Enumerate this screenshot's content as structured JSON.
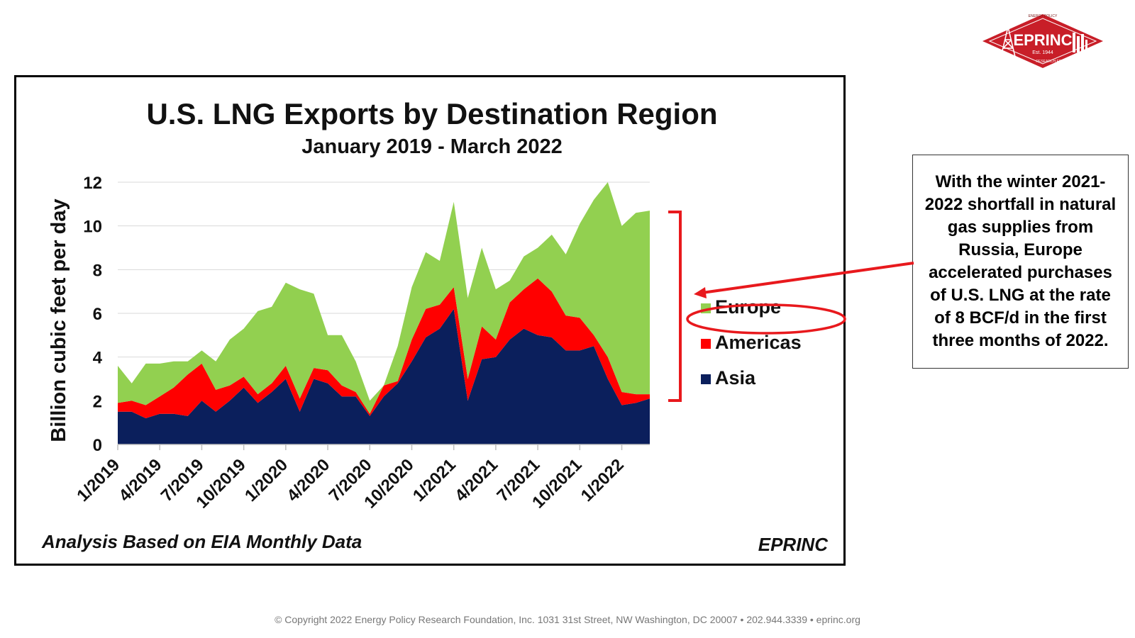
{
  "logo": {
    "name": "EPRINC",
    "established": "Est. 1944",
    "ring_text_top": "ENERGY POLICY",
    "ring_text_bottom": "RESEARCH FOUNDATION INC."
  },
  "chart_data": {
    "type": "area",
    "stacked": true,
    "title": "U.S. LNG Exports by Destination Region",
    "subtitle": "January 2019 - March 2022",
    "ylabel": "Billion  cubic feet per day",
    "xlabel": "",
    "ylim": [
      0,
      12
    ],
    "yticks": [
      0,
      2,
      4,
      6,
      8,
      10,
      12
    ],
    "grid": true,
    "legend_position": "right",
    "x": [
      "1/2019",
      "2/2019",
      "3/2019",
      "4/2019",
      "5/2019",
      "6/2019",
      "7/2019",
      "8/2019",
      "9/2019",
      "10/2019",
      "11/2019",
      "12/2019",
      "1/2020",
      "2/2020",
      "3/2020",
      "4/2020",
      "5/2020",
      "6/2020",
      "7/2020",
      "8/2020",
      "9/2020",
      "10/2020",
      "11/2020",
      "12/2020",
      "1/2021",
      "2/2021",
      "3/2021",
      "4/2021",
      "5/2021",
      "6/2021",
      "7/2021",
      "8/2021",
      "9/2021",
      "10/2021",
      "11/2021",
      "12/2021",
      "1/2022",
      "2/2022",
      "3/2022"
    ],
    "xtick_labels": [
      "1/2019",
      "4/2019",
      "7/2019",
      "10/2019",
      "1/2020",
      "4/2020",
      "7/2020",
      "10/2020",
      "1/2021",
      "4/2021",
      "7/2021",
      "10/2021",
      "1/2022"
    ],
    "series": [
      {
        "name": "Asia",
        "color": "#0b1f5c",
        "values": [
          1.5,
          1.5,
          1.2,
          1.4,
          1.4,
          1.3,
          2.0,
          1.5,
          2.0,
          2.6,
          1.9,
          2.4,
          3.0,
          1.5,
          3.0,
          2.8,
          2.2,
          2.2,
          1.3,
          2.2,
          2.8,
          3.8,
          4.9,
          5.3,
          6.2,
          2.0,
          3.9,
          4.0,
          4.8,
          5.3,
          5.0,
          4.9,
          4.3,
          4.3,
          4.5,
          3.0,
          1.8,
          1.9,
          2.1
        ]
      },
      {
        "name": "Americas",
        "color": "#ff0000",
        "values": [
          0.4,
          0.5,
          0.6,
          0.8,
          1.2,
          1.9,
          1.7,
          1.0,
          0.7,
          0.5,
          0.4,
          0.4,
          0.6,
          0.6,
          0.5,
          0.6,
          0.5,
          0.2,
          0.1,
          0.5,
          0.1,
          1.0,
          1.3,
          1.1,
          1.0,
          1.0,
          1.5,
          0.8,
          1.7,
          1.8,
          2.6,
          2.1,
          1.6,
          1.5,
          0.5,
          1.0,
          0.6,
          0.4,
          0.2
        ]
      },
      {
        "name": "Europe",
        "color": "#92d050",
        "values": [
          1.7,
          0.8,
          1.9,
          1.5,
          1.2,
          0.6,
          0.6,
          1.3,
          2.1,
          2.2,
          3.8,
          3.5,
          3.8,
          5.0,
          3.4,
          1.6,
          2.3,
          1.4,
          0.6,
          0.0,
          1.6,
          2.4,
          2.6,
          2.0,
          3.9,
          3.7,
          3.6,
          2.3,
          1.0,
          1.5,
          1.4,
          2.6,
          2.8,
          4.3,
          6.2,
          8.0,
          7.6,
          8.3,
          8.4
        ]
      }
    ]
  },
  "source_note": "Analysis Based on EIA Monthly Data",
  "brand_note": "EPRINC",
  "callout": {
    "text": "With the winter 2021-2022 shortfall in natural gas supplies from Russia, Europe accelerated purchases of U.S. LNG at the rate of 8 BCF/d in the first three months of 2022."
  },
  "footer": {
    "text": "© Copyright 2022 Energy Policy Research Foundation, Inc. 1031 31st Street, NW Washington, DC 20007 • 202.944.3339 • eprinc.org"
  },
  "colors": {
    "annotation_red": "#e8191d",
    "logo_red": "#c81e28"
  }
}
